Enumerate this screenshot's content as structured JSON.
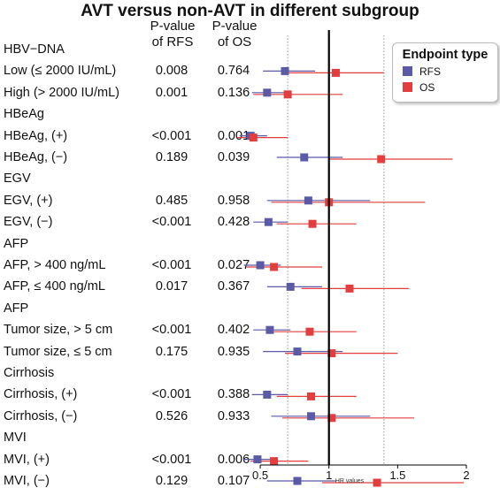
{
  "chart_data": {
    "type": "forest",
    "title": "AVT versus non-AVT in different subgroup",
    "xlabel": "HR values",
    "xlim": [
      0.3,
      2.0
    ],
    "xticks": [
      0.5,
      1,
      1.5,
      2
    ],
    "reference_line": 1,
    "dotted_lines": [
      0.7,
      1.4
    ],
    "columns": [
      "P-value\nof RFS",
      "P-value\nof OS"
    ],
    "legend": {
      "title": "Endpoint type",
      "position": "top-right"
    },
    "series": [
      {
        "name": "RFS",
        "color": "#5a5aa6"
      },
      {
        "name": "OS",
        "color": "#e43d3d"
      }
    ],
    "rows": [
      {
        "label": "HBV−DNA",
        "header": true
      },
      {
        "label": "Low (≤ 2000 IU/mL)",
        "p_rfs": "0.008",
        "p_os": "0.764",
        "rfs": {
          "hr": 0.68,
          "lo": 0.52,
          "hi": 0.9
        },
        "os": {
          "hr": 1.05,
          "lo": 0.7,
          "hi": 1.4
        }
      },
      {
        "label": "High (> 2000 IU/mL)",
        "p_rfs": "0.001",
        "p_os": "0.136",
        "rfs": {
          "hr": 0.55,
          "lo": 0.44,
          "hi": 0.7
        },
        "os": {
          "hr": 0.7,
          "lo": 0.45,
          "hi": 1.1
        }
      },
      {
        "label": "HBeAg",
        "header": true
      },
      {
        "label": "HBeAg, (+)",
        "p_rfs": "<0.001",
        "p_os": "0.001",
        "rfs": {
          "hr": 0.43,
          "lo": 0.35,
          "hi": 0.55
        },
        "os": {
          "hr": 0.45,
          "lo": 0.33,
          "hi": 0.7
        }
      },
      {
        "label": "HBeAg, (−)",
        "p_rfs": "0.189",
        "p_os": "0.039",
        "rfs": {
          "hr": 0.82,
          "lo": 0.62,
          "hi": 1.1
        },
        "os": {
          "hr": 1.38,
          "lo": 1.0,
          "hi": 1.9
        }
      },
      {
        "label": "EGV",
        "header": true
      },
      {
        "label": "EGV, (+)",
        "p_rfs": "0.485",
        "p_os": "0.958",
        "rfs": {
          "hr": 0.85,
          "lo": 0.55,
          "hi": 1.3
        },
        "os": {
          "hr": 1.0,
          "lo": 0.58,
          "hi": 1.7
        }
      },
      {
        "label": "EGV, (−)",
        "p_rfs": "<0.001",
        "p_os": "0.428",
        "rfs": {
          "hr": 0.56,
          "lo": 0.45,
          "hi": 0.7
        },
        "os": {
          "hr": 0.88,
          "lo": 0.62,
          "hi": 1.2
        }
      },
      {
        "label": "AFP",
        "header": true
      },
      {
        "label": "AFP, > 400 ng/mL",
        "p_rfs": "<0.001",
        "p_os": "0.027",
        "rfs": {
          "hr": 0.5,
          "lo": 0.38,
          "hi": 0.65
        },
        "os": {
          "hr": 0.6,
          "lo": 0.4,
          "hi": 0.95
        }
      },
      {
        "label": "AFP, ≤ 400 ng/mL",
        "p_rfs": "0.017",
        "p_os": "0.367",
        "rfs": {
          "hr": 0.72,
          "lo": 0.55,
          "hi": 0.95
        },
        "os": {
          "hr": 1.15,
          "lo": 0.8,
          "hi": 1.58
        }
      },
      {
        "label": "AFP",
        "header": true
      },
      {
        "label": "Tumor size, > 5 cm",
        "p_rfs": "<0.001",
        "p_os": "0.402",
        "rfs": {
          "hr": 0.57,
          "lo": 0.45,
          "hi": 0.72
        },
        "os": {
          "hr": 0.86,
          "lo": 0.6,
          "hi": 1.2
        }
      },
      {
        "label": "Tumor size, ≤ 5 cm",
        "p_rfs": "0.175",
        "p_os": "0.935",
        "rfs": {
          "hr": 0.77,
          "lo": 0.52,
          "hi": 1.1
        },
        "os": {
          "hr": 1.02,
          "lo": 0.68,
          "hi": 1.5
        }
      },
      {
        "label": "Cirrhosis",
        "header": true
      },
      {
        "label": "Cirrhosis, (+)",
        "p_rfs": "<0.001",
        "p_os": "0.388",
        "rfs": {
          "hr": 0.55,
          "lo": 0.44,
          "hi": 0.7
        },
        "os": {
          "hr": 0.87,
          "lo": 0.62,
          "hi": 1.2
        }
      },
      {
        "label": "Cirrhosis, (−)",
        "p_rfs": "0.526",
        "p_os": "0.933",
        "rfs": {
          "hr": 0.87,
          "lo": 0.58,
          "hi": 1.3
        },
        "os": {
          "hr": 1.02,
          "lo": 0.66,
          "hi": 1.62
        }
      },
      {
        "label": "MVI",
        "header": true
      },
      {
        "label": "MVI, (+)",
        "p_rfs": "<0.001",
        "p_os": "0.006",
        "rfs": {
          "hr": 0.48,
          "lo": 0.38,
          "hi": 0.62
        },
        "os": {
          "hr": 0.6,
          "lo": 0.43,
          "hi": 0.85
        }
      },
      {
        "label": "MVI, (−)",
        "p_rfs": "0.129",
        "p_os": "0.107",
        "rfs": {
          "hr": 0.77,
          "lo": 0.55,
          "hi": 1.05
        },
        "os": {
          "hr": 1.35,
          "lo": 0.95,
          "hi": 1.98
        }
      }
    ]
  }
}
